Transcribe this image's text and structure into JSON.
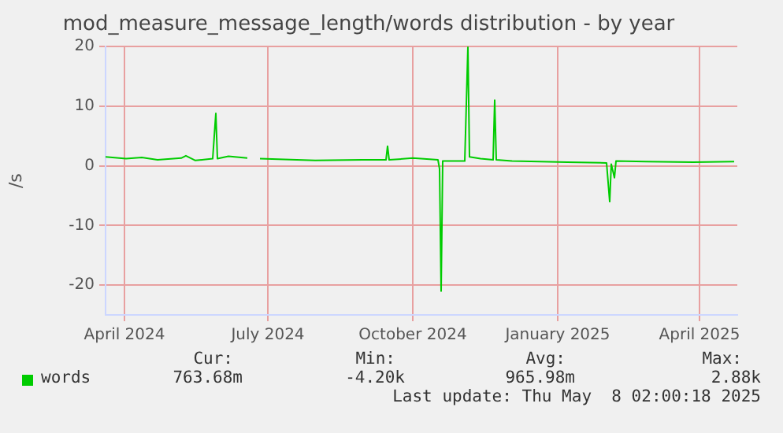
{
  "chart_data": {
    "type": "line",
    "title": "mod_measure_message_length/words distribution - by year",
    "ylabel": "/s",
    "x": [
      "2024-04-03",
      "2024-04-16",
      "2024-04-26",
      "2024-05-06",
      "2024-05-21",
      "2024-05-24",
      "2024-05-30",
      "2024-06-10",
      "2024-06-12",
      "2024-06-13",
      "2024-06-20",
      "2024-07-02",
      "2024-07-05",
      "2024-07-10",
      "2024-08-14",
      "2024-09-13",
      "2024-09-28",
      "2024-09-29",
      "2024-09-30",
      "2024-10-15",
      "2024-10-31",
      "2024-11-01",
      "2024-11-02",
      "2024-11-03",
      "2024-11-17",
      "2024-11-19",
      "2024-11-20",
      "2024-11-27",
      "2024-12-05",
      "2024-12-06",
      "2024-12-07",
      "2024-12-17",
      "2025-01-21",
      "2025-02-15",
      "2025-02-17",
      "2025-02-18",
      "2025-02-20",
      "2025-02-21",
      "2025-03-12",
      "2025-04-11",
      "2025-05-07"
    ],
    "series": [
      {
        "name": "words",
        "color": "#00cc00",
        "values": [
          1.5,
          1.2,
          1.4,
          1.0,
          1.3,
          1.7,
          0.9,
          1.2,
          8.8,
          1.2,
          1.6,
          1.3,
          null,
          1.2,
          0.9,
          1.0,
          1.0,
          3.3,
          1.0,
          1.3,
          1.0,
          -0.5,
          -21,
          0.8,
          0.8,
          20,
          1.5,
          1.2,
          1.0,
          11,
          1.0,
          0.8,
          0.6,
          0.5,
          -6,
          0.3,
          -2,
          0.8,
          0.7,
          0.6,
          0.7
        ]
      }
    ],
    "xlim": [
      "2024-04-03",
      "2025-05-09"
    ],
    "xticks": [
      {
        "value": "2024-04-15",
        "label": "April 2024"
      },
      {
        "value": "2024-07-15",
        "label": "July 2024"
      },
      {
        "value": "2024-10-15",
        "label": "October 2024"
      },
      {
        "value": "2025-01-15",
        "label": "January 2025"
      },
      {
        "value": "2025-04-15",
        "label": "April 2025"
      }
    ],
    "ylim": [
      -25,
      20
    ],
    "yticks": [
      -20,
      -10,
      0,
      10,
      20
    ],
    "grid": true,
    "legend": "bottom left",
    "marker": "none",
    "line_style": "solid",
    "annotations": [
      "Cur:",
      "Min:",
      "Avg:",
      "Max:",
      "763.68m",
      "-4.20k",
      "965.98m",
      "2.88k",
      "Last update: Thu May  8 02:00:18 2025"
    ]
  }
}
